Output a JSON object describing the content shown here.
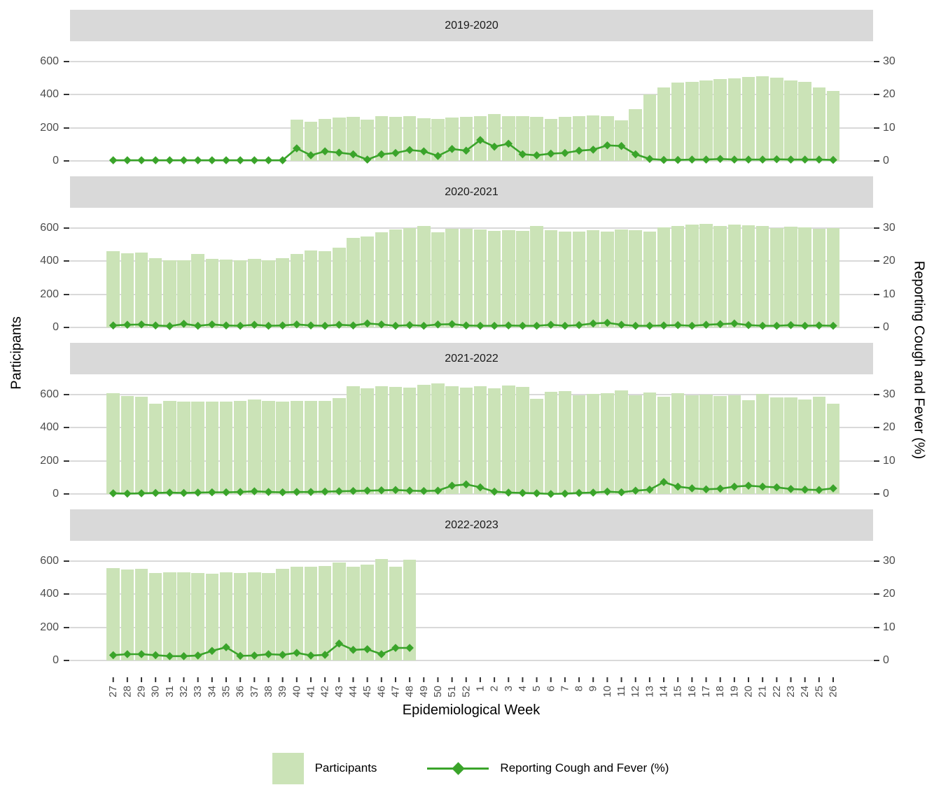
{
  "figure": {
    "y_left_title": "Participants",
    "y_right_title": "Reporting Cough and Fever (%)",
    "x_title": "Epidemiological Week",
    "colors": {
      "bar": "#cbe3b7",
      "line": "#3aa42a",
      "strip_bg": "#d9d9d9",
      "gridline": "#d9d9d9",
      "tick_text": "#4d4d4d",
      "tick_mark": "#333333"
    },
    "legend": [
      {
        "type": "square",
        "label": "Participants"
      },
      {
        "type": "line-point",
        "label": "Reporting Cough and Fever (%)"
      }
    ]
  },
  "chart_data": {
    "type": "bar",
    "subtype": "faceted dual-axis bar + line with diamond points",
    "x_axis_label": "Epidemiological Week",
    "x_tick_labels": [
      "27",
      "28",
      "29",
      "30",
      "31",
      "32",
      "33",
      "34",
      "35",
      "36",
      "37",
      "38",
      "39",
      "40",
      "41",
      "42",
      "43",
      "44",
      "45",
      "46",
      "47",
      "48",
      "49",
      "50",
      "51",
      "52",
      "1",
      "2",
      "3",
      "4",
      "5",
      "6",
      "7",
      "8",
      "9",
      "10",
      "11",
      "12",
      "13",
      "14",
      "15",
      "16",
      "17",
      "18",
      "19",
      "20",
      "21",
      "22",
      "23",
      "24",
      "25",
      "26"
    ],
    "left_axis": {
      "title": "Participants",
      "ticks": [
        0,
        200,
        400,
        600
      ],
      "range": [
        0,
        660
      ]
    },
    "right_axis": {
      "title": "Reporting Cough and Fever (%)",
      "ticks": [
        0,
        10,
        20,
        30
      ],
      "range": [
        0,
        33
      ]
    },
    "legend_position": "bottom",
    "grid": "horizontal only",
    "facets": [
      {
        "label": "2019-2020",
        "participants": [
          0,
          0,
          0,
          0,
          0,
          0,
          0,
          0,
          0,
          0,
          0,
          0,
          0,
          248,
          238,
          255,
          260,
          268,
          250,
          272,
          265,
          270,
          258,
          252,
          262,
          265,
          272,
          281,
          272,
          270,
          265,
          252,
          265,
          271,
          276,
          270,
          247,
          311,
          402,
          444,
          475,
          479,
          486,
          493,
          500,
          507,
          511,
          502,
          486,
          478,
          444,
          423
        ],
        "percent": [
          0.2,
          0.2,
          0.2,
          0.2,
          0.2,
          0.2,
          0.2,
          0.2,
          0.2,
          0.2,
          0.2,
          0.2,
          0.2,
          3.8,
          1.7,
          2.9,
          2.5,
          2.0,
          0.4,
          2.0,
          2.4,
          3.3,
          2.9,
          1.5,
          3.6,
          3.1,
          6.3,
          4.3,
          5.2,
          2.0,
          1.7,
          2.2,
          2.4,
          3.1,
          3.4,
          4.7,
          4.5,
          2.0,
          0.6,
          0.3,
          0.3,
          0.4,
          0.4,
          0.6,
          0.4,
          0.4,
          0.4,
          0.5,
          0.4,
          0.4,
          0.4,
          0.3
        ]
      },
      {
        "label": "2020-2021",
        "participants": [
          462,
          448,
          453,
          419,
          406,
          406,
          443,
          412,
          409,
          406,
          412,
          406,
          419,
          443,
          466,
          461,
          480,
          539,
          548,
          575,
          593,
          600,
          614,
          575,
          597,
          596,
          593,
          583,
          587,
          583,
          611,
          587,
          579,
          577,
          587,
          579,
          593,
          587,
          579,
          604,
          611,
          620,
          627,
          611,
          620,
          615,
          611,
          601,
          607,
          604,
          597,
          600
        ],
        "percent": [
          0.6,
          0.8,
          0.9,
          0.6,
          0.4,
          1.1,
          0.5,
          0.9,
          0.6,
          0.5,
          0.8,
          0.5,
          0.6,
          0.9,
          0.6,
          0.5,
          0.8,
          0.6,
          1.2,
          0.9,
          0.5,
          0.7,
          0.5,
          0.9,
          1.0,
          0.6,
          0.5,
          0.5,
          0.6,
          0.5,
          0.5,
          0.8,
          0.5,
          0.7,
          1.2,
          1.4,
          0.8,
          0.5,
          0.5,
          0.6,
          0.7,
          0.5,
          0.8,
          1.0,
          1.2,
          0.7,
          0.5,
          0.5,
          0.7,
          0.5,
          0.6,
          0.5
        ]
      },
      {
        "label": "2021-2022",
        "participants": [
          607,
          593,
          589,
          543,
          560,
          557,
          557,
          557,
          557,
          560,
          569,
          560,
          557,
          560,
          560,
          564,
          579,
          650,
          636,
          650,
          646,
          643,
          660,
          669,
          650,
          643,
          652,
          638,
          655,
          645,
          574,
          617,
          621,
          596,
          603,
          610,
          627,
          596,
          613,
          589,
          607,
          596,
          599,
          593,
          596,
          565,
          606,
          582,
          584,
          570,
          589,
          543
        ],
        "percent": [
          0.2,
          0.1,
          0.2,
          0.3,
          0.4,
          0.3,
          0.4,
          0.5,
          0.5,
          0.6,
          0.8,
          0.6,
          0.5,
          0.6,
          0.6,
          0.7,
          0.8,
          0.9,
          1.0,
          1.1,
          1.2,
          1.0,
          0.9,
          1.0,
          2.5,
          2.9,
          2.0,
          0.7,
          0.4,
          0.3,
          0.2,
          0.0,
          0.1,
          0.3,
          0.4,
          0.7,
          0.5,
          1.0,
          1.3,
          3.6,
          2.2,
          1.7,
          1.4,
          1.6,
          2.2,
          2.5,
          2.2,
          2.0,
          1.5,
          1.3,
          1.2,
          1.7
        ]
      },
      {
        "label": "2022-2023",
        "participants": [
          556,
          550,
          552,
          527,
          531,
          532,
          530,
          526,
          532,
          530,
          531,
          527,
          553,
          565,
          567,
          572,
          592,
          568,
          578,
          612,
          567,
          608
        ],
        "percent": [
          1.6,
          1.9,
          1.9,
          1.6,
          1.3,
          1.3,
          1.5,
          2.9,
          4.0,
          1.4,
          1.5,
          1.9,
          1.7,
          2.3,
          1.5,
          1.7,
          5.1,
          3.2,
          3.4,
          1.9,
          3.8,
          3.8
        ]
      }
    ]
  }
}
